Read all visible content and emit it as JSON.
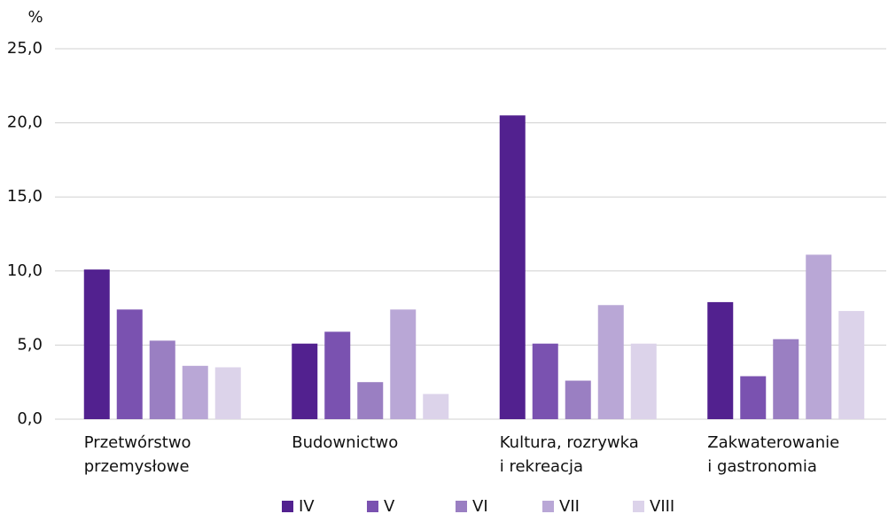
{
  "chart_data": {
    "type": "bar",
    "y_label": "%",
    "categories": [
      "Przetwórstwo\nprzemysłowe",
      "Budownictwo",
      "Kultura, rozrywka\ni rekreacja",
      "Zakwaterowanie\ni gastronomia"
    ],
    "series": [
      {
        "name": "IV",
        "color": "#52218f",
        "values": [
          10.1,
          5.1,
          20.5,
          7.9
        ]
      },
      {
        "name": "V",
        "color": "#7a52b0",
        "values": [
          7.4,
          5.9,
          5.1,
          2.9
        ]
      },
      {
        "name": "VI",
        "color": "#9a7fc2",
        "values": [
          5.3,
          2.5,
          2.6,
          5.4
        ]
      },
      {
        "name": "VII",
        "color": "#b9a7d6",
        "values": [
          3.6,
          7.4,
          7.7,
          11.1
        ]
      },
      {
        "name": "VIII",
        "color": "#dcd3ea",
        "values": [
          3.5,
          1.7,
          5.1,
          7.3
        ]
      }
    ],
    "ylim": [
      0,
      25
    ],
    "yticks": [
      {
        "value": 0,
        "label": "0,0"
      },
      {
        "value": 5,
        "label": "5,0"
      },
      {
        "value": 10,
        "label": "10,0"
      },
      {
        "value": 15,
        "label": "15,0"
      },
      {
        "value": 20,
        "label": "20,0"
      },
      {
        "value": 25,
        "label": "25,0"
      }
    ],
    "grid": true,
    "legend": "bottom"
  }
}
